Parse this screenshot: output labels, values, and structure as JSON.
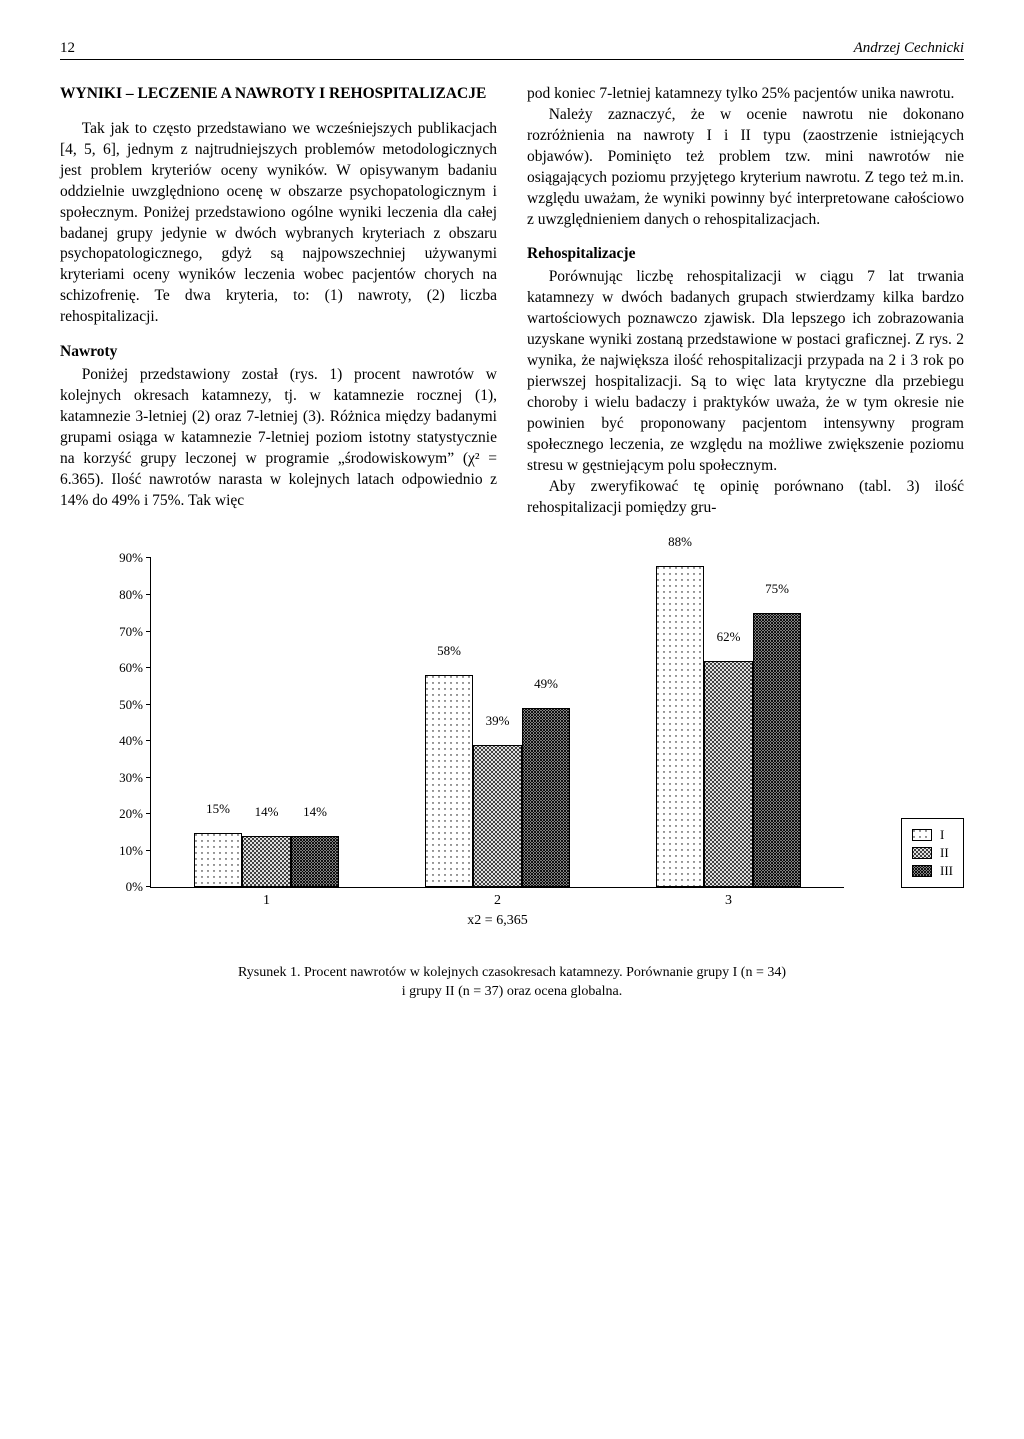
{
  "page_number": "12",
  "author": "Andrzej Cechnicki",
  "section_heading": "WYNIKI – LECZENIE A NAWROTY I REHOSPITALIZACJE",
  "para1": "Tak jak to często przedstawiano we wcześniejszych publikacjach [4, 5, 6], jednym z najtrudniejszych problemów metodologicznych jest problem kryteriów oceny wyników. W opisywanym badaniu oddzielnie uwzględniono ocenę w obszarze psychopatologicznym i społecznym. Poniżej przedstawiono ogólne wyniki leczenia dla całej badanej grupy jedynie w dwóch wybranych kryteriach z obszaru psychopatologicznego, gdyż są najpowszechniej używanymi kryteriami oceny wyników leczenia wobec pacjentów chorych na schizofrenię. Te dwa kryteria, to: (1) nawroty, (2) liczba rehospitalizacji.",
  "sub1": "Nawroty",
  "para2": "Poniżej przedstawiony został (rys. 1) procent nawrotów w kolejnych okresach katamnezy, tj. w katamnezie rocznej (1), katamnezie 3-letniej (2) oraz 7-letniej (3). Różnica między badanymi grupami osiąga w katamnezie 7-letniej poziom istotny statystycznie na korzyść grupy leczonej w programie „środowiskowym” (χ² = 6.365). Ilość nawrotów narasta w kolejnych latach odpowiednio z 14% do 49% i 75%. Tak więc",
  "para3": "pod koniec 7-letniej katamnezy tylko 25% pacjentów unika nawrotu.",
  "para4": "Należy zaznaczyć, że w ocenie nawrotu nie dokonano rozróżnienia na nawroty I i II typu (zaostrzenie istniejących objawów). Pominięto też problem tzw. mini nawrotów nie osiągających poziomu przyjętego kryterium nawrotu. Z tego też m.in. względu uważam, że wyniki powinny być interpretowane całościowo z uwzględnieniem danych o rehospitalizacjach.",
  "sub2": "Rehospitalizacje",
  "para5": "Porównując liczbę rehospitalizacji w ciągu 7 lat trwania katamnezy w dwóch badanych grupach stwierdzamy kilka bardzo wartościowych poznawczo zjawisk. Dla lepszego ich zobrazowania uzyskane wyniki zostaną przedstawione w postaci graficznej. Z rys. 2 wynika, że największa ilość rehospitalizacji przypada na 2 i 3 rok po pierwszej hospitalizacji. Są to więc lata krytyczne dla przebiegu choroby i wielu badaczy i praktyków uważa, że w tym okresie nie powinien być proponowany pacjentom intensywny program społecznego leczenia, ze względu na możliwe zwiększenie poziomu stresu w gęstniejącym polu społecznym.",
  "para6": "Aby zweryfikować tę opinię porównano (tabl. 3) ilość rehospitalizacji pomiędzy gru-",
  "chart": {
    "type": "bar",
    "ylim": [
      0,
      90
    ],
    "ytick_step": 10,
    "categories": [
      "1",
      "2",
      "3"
    ],
    "x_caption": "x2 = 6,365",
    "series": [
      {
        "name": "I",
        "pattern": "hatch-light",
        "values": [
          15,
          58,
          88
        ]
      },
      {
        "name": "II",
        "pattern": "hatch-med",
        "values": [
          14,
          39,
          62
        ]
      },
      {
        "name": "III",
        "pattern": "hatch-dark",
        "values": [
          14,
          49,
          75
        ]
      }
    ],
    "bar_group_width_pct": 22,
    "bar_width_pct": 7,
    "label_suffix": "%",
    "ylabel_suffix": "%",
    "colors": {
      "axis": "#000000",
      "background": "#ffffff",
      "text": "#000000"
    },
    "font_size_labels": 13
  },
  "caption_line1": "Rysunek 1. Procent nawrotów w kolejnych czasokresach katamnezy. Porównanie grupy I (n = 34)",
  "caption_line2": "i grupy II (n = 37) oraz ocena globalna."
}
